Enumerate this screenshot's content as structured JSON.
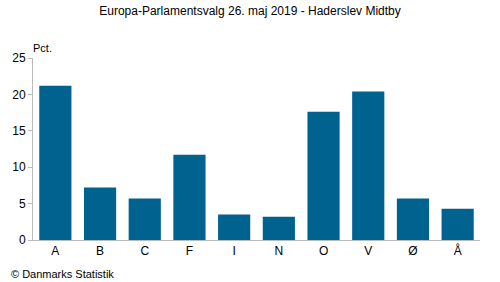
{
  "chart_data": {
    "type": "bar",
    "title": "Europa-Parlamentsvalg 26. maj 2019 - Haderslev Midtby",
    "y_label": "Pct.",
    "annotations": [
      "© Danmarks Statistik"
    ],
    "categories": [
      "A",
      "B",
      "C",
      "F",
      "I",
      "N",
      "O",
      "V",
      "Ø",
      "Å"
    ],
    "values": [
      21.2,
      7.2,
      5.7,
      11.7,
      3.5,
      3.2,
      17.6,
      20.4,
      5.7,
      4.3
    ],
    "color": "#00628f",
    "ylim": [
      0,
      25
    ],
    "yticks": [
      0,
      5,
      10,
      15,
      20,
      25
    ],
    "grid": false
  }
}
